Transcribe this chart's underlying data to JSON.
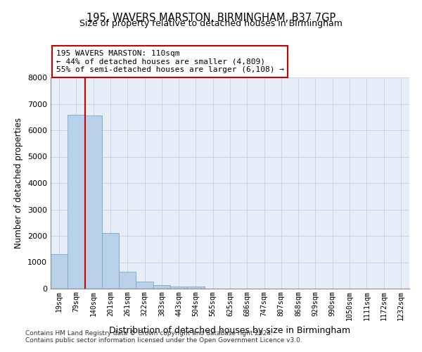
{
  "title_line1": "195, WAVERS MARSTON, BIRMINGHAM, B37 7GP",
  "title_line2": "Size of property relative to detached houses in Birmingham",
  "xlabel": "Distribution of detached houses by size in Birmingham",
  "ylabel": "Number of detached properties",
  "categories": [
    "19sqm",
    "79sqm",
    "140sqm",
    "201sqm",
    "261sqm",
    "322sqm",
    "383sqm",
    "443sqm",
    "504sqm",
    "565sqm",
    "625sqm",
    "686sqm",
    "747sqm",
    "807sqm",
    "868sqm",
    "929sqm",
    "990sqm",
    "1050sqm",
    "1111sqm",
    "1172sqm",
    "1232sqm"
  ],
  "values": [
    1300,
    6600,
    6550,
    2100,
    650,
    280,
    130,
    80,
    80,
    0,
    0,
    0,
    0,
    0,
    0,
    0,
    0,
    0,
    0,
    0,
    0
  ],
  "bar_color": "#b8d0e8",
  "bar_edgecolor": "#7aaac8",
  "red_line_x": 1.5,
  "annotation_text_line1": "195 WAVERS MARSTON: 110sqm",
  "annotation_text_line2": "← 44% of detached houses are smaller (4,809)",
  "annotation_text_line3": "55% of semi-detached houses are larger (6,108) →",
  "annotation_box_color": "#cc0000",
  "grid_color": "#c8d4e4",
  "bg_color": "#e8eef8",
  "ylim": [
    0,
    8000
  ],
  "yticks": [
    0,
    1000,
    2000,
    3000,
    4000,
    5000,
    6000,
    7000,
    8000
  ],
  "footnote_line1": "Contains HM Land Registry data © Crown copyright and database right 2024.",
  "footnote_line2": "Contains public sector information licensed under the Open Government Licence v3.0."
}
